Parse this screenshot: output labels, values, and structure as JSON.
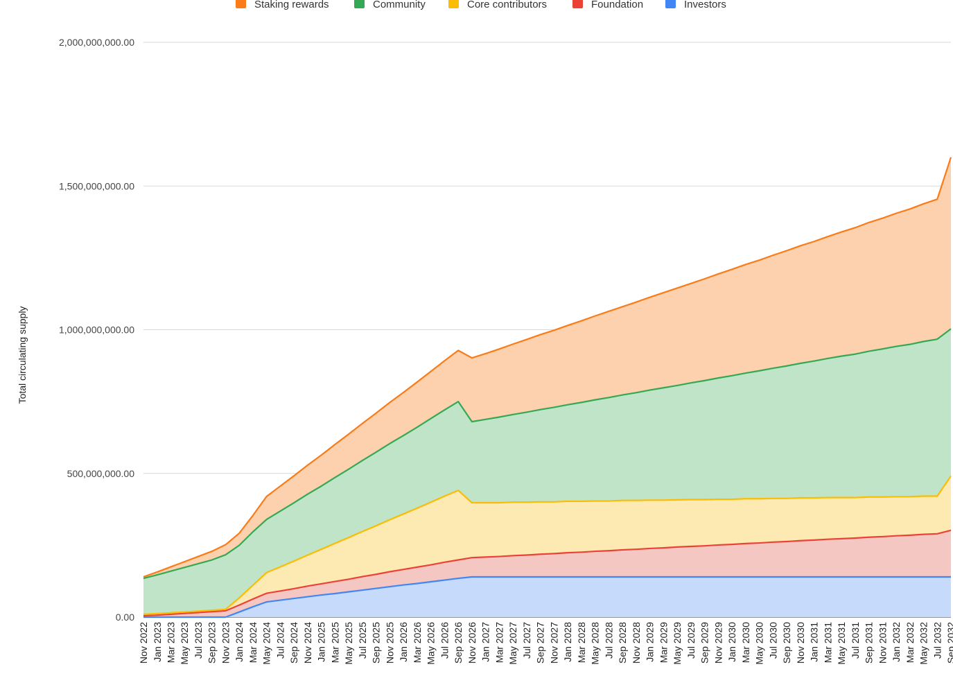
{
  "chart_data": {
    "type": "area",
    "stacked": true,
    "title": "",
    "xlabel": "",
    "ylabel": "Total circulating supply",
    "ylim": [
      0,
      2000000000
    ],
    "yticks": [
      "0.00",
      "500,000,000.00",
      "1,000,000,000.00",
      "1,500,000,000.00",
      "2,000,000,000.00"
    ],
    "grid": true,
    "legend_position": "top",
    "x": [
      "Nov 2022",
      "Jan 2023",
      "Mar 2023",
      "May 2023",
      "Jul 2023",
      "Sep 2023",
      "Nov 2023",
      "Jan 2024",
      "Mar 2024",
      "May 2024",
      "Jul 2024",
      "Sep 2024",
      "Nov 2024",
      "Jan 2025",
      "Mar 2025",
      "May 2025",
      "Jul 2025",
      "Sep 2025",
      "Nov 2025",
      "Jan 2026",
      "Mar 2026",
      "May 2026",
      "Jul 2026",
      "Sep 2026",
      "Nov 2026",
      "Jan 2027",
      "Mar 2027",
      "May 2027",
      "Jul 2027",
      "Sep 2027",
      "Nov 2027",
      "Jan 2028",
      "Mar 2028",
      "May 2028",
      "Jul 2028",
      "Sep 2028",
      "Nov 2028",
      "Jan 2029",
      "Mar 2029",
      "May 2029",
      "Jul 2029",
      "Sep 2029",
      "Nov 2029",
      "Jan 2030",
      "Mar 2030",
      "May 2030",
      "Jul 2030",
      "Sep 2030",
      "Nov 2030",
      "Jan 2031",
      "Mar 2031",
      "May 2031",
      "Jul 2031",
      "Sep 2031",
      "Nov 2031",
      "Jan 2032",
      "Mar 2032",
      "May 2032",
      "Jul 2032",
      "Sep 2032"
    ],
    "series": [
      {
        "name": "Investors",
        "color": "#4285f4",
        "fill": "#c6dafc",
        "values": [
          0,
          0,
          0,
          0,
          0,
          0,
          0,
          18000000,
          36000000,
          53000000,
          59000000,
          65000000,
          71000000,
          77000000,
          82000000,
          88000000,
          94000000,
          100000000,
          106000000,
          112000000,
          117000000,
          123000000,
          129000000,
          135000000,
          140000000,
          140000000,
          140000000,
          140000000,
          140000000,
          140000000,
          140000000,
          140000000,
          140000000,
          140000000,
          140000000,
          140000000,
          140000000,
          140000000,
          140000000,
          140000000,
          140000000,
          140000000,
          140000000,
          140000000,
          140000000,
          140000000,
          140000000,
          140000000,
          140000000,
          140000000,
          140000000,
          140000000,
          140000000,
          140000000,
          140000000,
          140000000,
          140000000,
          140000000,
          140000000,
          140000000
        ]
      },
      {
        "name": "Foundation",
        "color": "#ea4335",
        "fill": "#f4c7c3",
        "values": [
          5000000,
          7000000,
          10000000,
          13000000,
          16000000,
          19000000,
          22000000,
          24000000,
          27000000,
          30000000,
          32000000,
          34000000,
          37000000,
          39000000,
          42000000,
          44000000,
          47000000,
          49000000,
          52000000,
          54000000,
          57000000,
          59000000,
          62000000,
          64000000,
          67000000,
          69000000,
          71000000,
          74000000,
          76000000,
          79000000,
          81000000,
          84000000,
          86000000,
          89000000,
          91000000,
          94000000,
          96000000,
          99000000,
          101000000,
          104000000,
          106000000,
          108000000,
          111000000,
          113000000,
          116000000,
          118000000,
          121000000,
          123000000,
          126000000,
          128000000,
          131000000,
          133000000,
          135000000,
          138000000,
          140000000,
          143000000,
          145000000,
          148000000,
          150000000,
          162000000
        ]
      },
      {
        "name": "Core contributors",
        "color": "#fbbc04",
        "fill": "#fde9b2",
        "values": [
          5000000,
          5000000,
          5000000,
          5000000,
          5000000,
          5000000,
          5000000,
          25000000,
          48000000,
          72000000,
          84000000,
          96000000,
          108000000,
          120000000,
          133000000,
          145000000,
          157000000,
          169000000,
          181000000,
          193000000,
          205000000,
          218000000,
          230000000,
          242000000,
          191000000,
          189000000,
          187000000,
          186000000,
          184000000,
          182000000,
          180000000,
          179000000,
          177000000,
          175000000,
          173000000,
          172000000,
          170000000,
          168000000,
          166000000,
          164000000,
          163000000,
          161000000,
          159000000,
          157000000,
          156000000,
          154000000,
          152000000,
          150000000,
          149000000,
          147000000,
          145000000,
          143000000,
          141000000,
          140000000,
          138000000,
          136000000,
          134000000,
          133000000,
          131000000,
          189000000
        ]
      },
      {
        "name": "Community",
        "color": "#34a853",
        "fill": "#c0e4c8",
        "values": [
          125000000,
          135000000,
          145000000,
          155000000,
          165000000,
          175000000,
          190000000,
          183000000,
          186000000,
          185000000,
          194000000,
          203000000,
          212000000,
          220000000,
          229000000,
          238000000,
          247000000,
          256000000,
          265000000,
          273000000,
          282000000,
          291000000,
          300000000,
          309000000,
          282000000,
          290000000,
          298000000,
          305000000,
          313000000,
          321000000,
          329000000,
          336000000,
          344000000,
          352000000,
          360000000,
          367000000,
          375000000,
          383000000,
          391000000,
          398000000,
          406000000,
          414000000,
          422000000,
          430000000,
          437000000,
          445000000,
          453000000,
          461000000,
          468000000,
          476000000,
          484000000,
          492000000,
          499000000,
          507000000,
          515000000,
          523000000,
          530000000,
          538000000,
          546000000,
          512000000
        ]
      },
      {
        "name": "Staking rewards",
        "color": "#fa7b17",
        "fill": "#fdd0ae",
        "values": [
          5000000,
          10000000,
          15000000,
          20000000,
          25000000,
          30000000,
          35000000,
          42000000,
          57000000,
          80000000,
          87000000,
          94000000,
          101000000,
          108000000,
          115000000,
          122000000,
          129000000,
          136000000,
          143000000,
          150000000,
          157000000,
          164000000,
          171000000,
          178000000,
          222000000,
          229000000,
          237000000,
          245000000,
          253000000,
          261000000,
          268000000,
          276000000,
          284000000,
          292000000,
          300000000,
          307000000,
          315000000,
          323000000,
          331000000,
          339000000,
          346000000,
          354000000,
          362000000,
          370000000,
          378000000,
          385000000,
          393000000,
          401000000,
          409000000,
          416000000,
          424000000,
          432000000,
          440000000,
          448000000,
          455000000,
          463000000,
          471000000,
          479000000,
          487000000,
          597000000
        ]
      }
    ],
    "legend_order": [
      "Staking rewards",
      "Community",
      "Core contributors",
      "Foundation",
      "Investors"
    ]
  }
}
